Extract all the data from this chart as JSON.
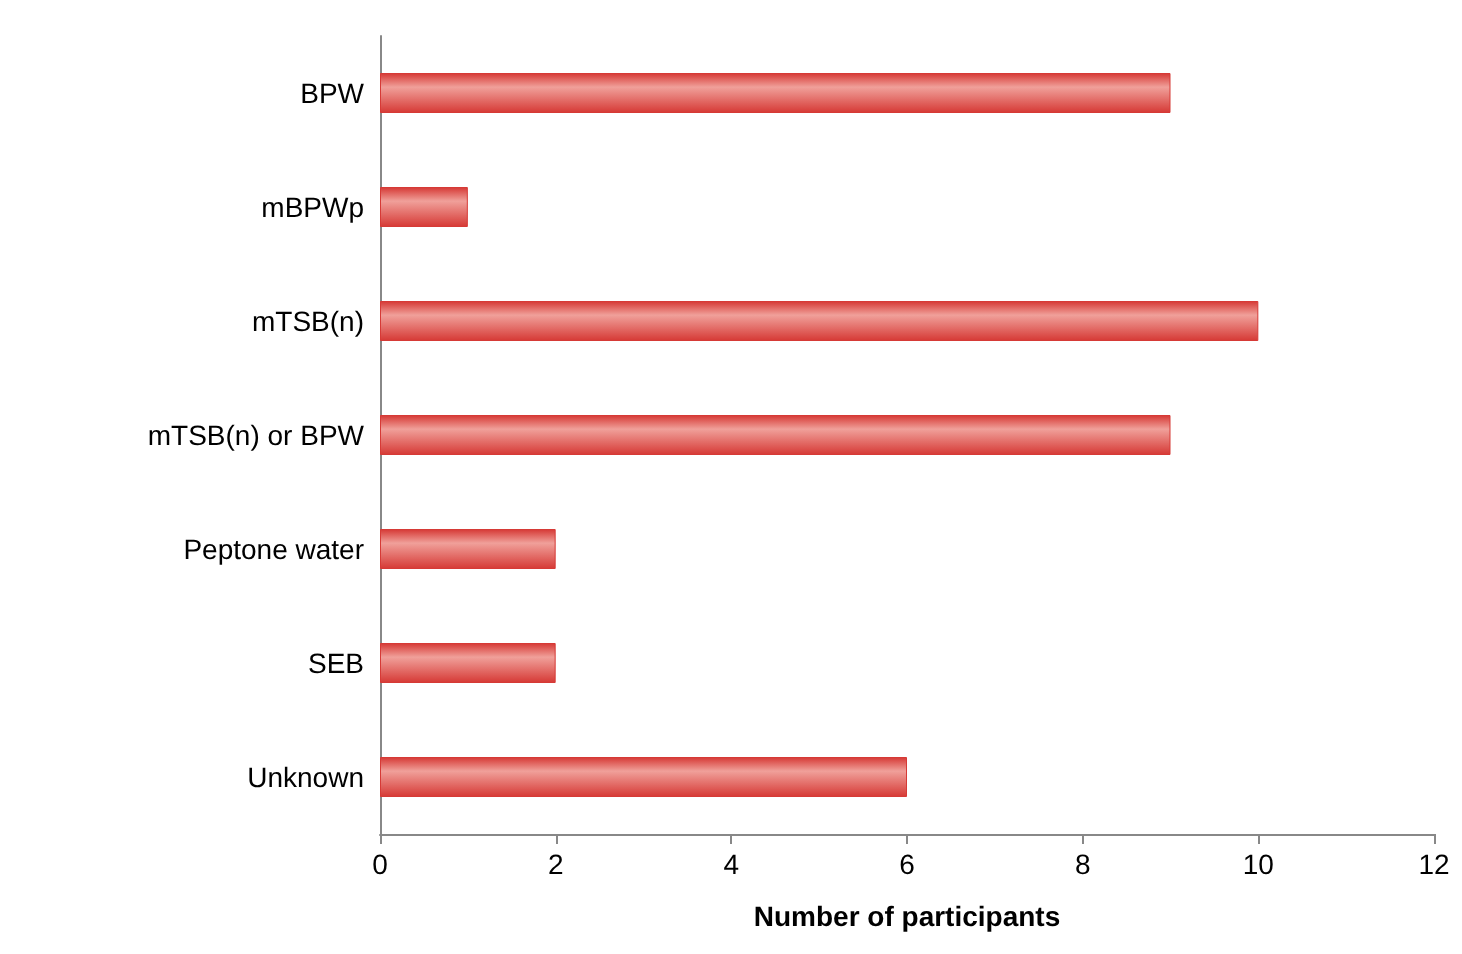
{
  "chart_data": {
    "type": "bar",
    "orientation": "horizontal",
    "xlabel": "Number of participants",
    "categories": [
      "BPW",
      "mBPWp",
      "mTSB(n)",
      "mTSB(n) or BPW",
      "Peptone water",
      "SEB",
      "Unknown"
    ],
    "values": [
      9,
      1,
      10,
      9,
      2,
      2,
      6
    ],
    "color": "#d63a36",
    "xlim": [
      0,
      12
    ],
    "xticks": [
      0,
      2,
      4,
      6,
      8,
      10,
      12
    ],
    "grid": false
  }
}
